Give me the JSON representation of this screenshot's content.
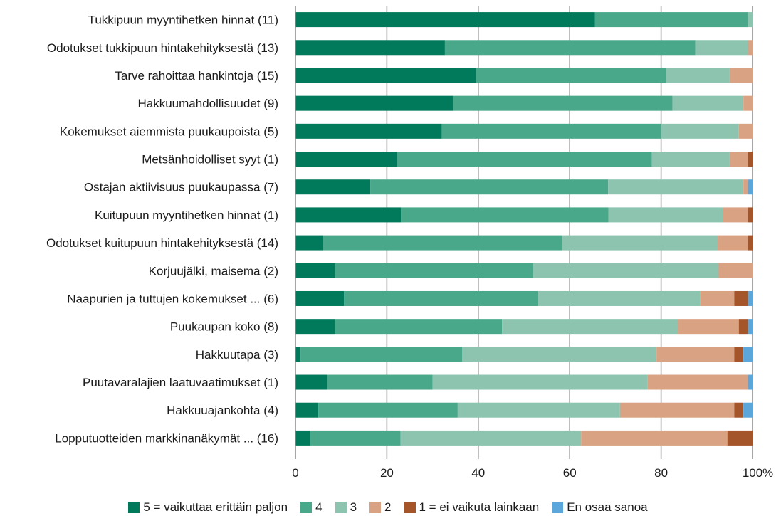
{
  "chart_data": {
    "type": "bar",
    "orientation": "horizontal",
    "stacked": true,
    "categories": [
      "Tukkipuun myyntihetken hinnat (11)",
      "Odotukset tukkipuun hintakehityksestä (13)",
      "Tarve rahoittaa hankintoja (15)",
      "Hakkuumahdollisuudet (9)",
      "Kokemukset aiemmista puukaupoista (5)",
      "Metsänhoidolliset syyt (1)",
      "Ostajan aktiivisuus puukaupassa (7)",
      "Kuitupuun myyntihetken hinnat (1)",
      "Odotukset kuitupuun hintakehityksestä (14)",
      "Korjuujälki, maisema (2)",
      "Naapurien ja tuttujen kokemukset ... (6)",
      "Puukaupan koko (8)",
      "Hakkuutapa (3)",
      "Puutavaralajien laatuvaatimukset (1)",
      "Hakkuuajankohta (4)",
      "Lopputuotteiden markkinanäkymät  ... (16)"
    ],
    "series": [
      {
        "name": "5 = vaikuttaa erittäin paljon",
        "color": "#007a5a",
        "values": [
          65.5,
          32.7,
          39.5,
          34.5,
          32.0,
          22.2,
          16.4,
          23.1,
          6.0,
          8.7,
          10.6,
          8.7,
          1.1,
          7.0,
          5.0,
          3.2
        ]
      },
      {
        "name": "4",
        "color": "#4aa88a",
        "values": [
          33.5,
          54.8,
          41.5,
          48.0,
          48.0,
          55.8,
          52.0,
          45.4,
          52.4,
          43.3,
          42.4,
          36.5,
          35.4,
          23.0,
          30.5,
          19.8
        ]
      },
      {
        "name": "3",
        "color": "#8cc4b0",
        "values": [
          1.0,
          11.5,
          14.0,
          15.5,
          17.0,
          17.0,
          29.6,
          25.0,
          34.0,
          40.5,
          35.5,
          38.5,
          42.5,
          47.0,
          35.5,
          39.5
        ]
      },
      {
        "name": "2",
        "color": "#d9a283",
        "values": [
          0,
          1.0,
          5.0,
          2.0,
          3.0,
          4.0,
          1.0,
          5.5,
          6.6,
          7.5,
          7.5,
          13.3,
          17.0,
          22.0,
          25.0,
          32.0
        ]
      },
      {
        "name": "1 = ei vaikuta lainkaan",
        "color": "#a5552a",
        "values": [
          0,
          0,
          0,
          0,
          0,
          1.0,
          0,
          1.0,
          1.0,
          0,
          3.0,
          2.0,
          2.0,
          0,
          2.0,
          5.5
        ]
      },
      {
        "name": "En osaa sanoa",
        "color": "#5ba7dc",
        "values": [
          0,
          0,
          0,
          0,
          0,
          0,
          1.0,
          0,
          0,
          0,
          1.0,
          1.0,
          2.0,
          1.0,
          2.0,
          0
        ]
      }
    ],
    "xlim": [
      0,
      100
    ],
    "xticks": [
      "0",
      "20",
      "40",
      "60",
      "80",
      "100"
    ],
    "x_unit": "%",
    "grid": true,
    "legend_position": "bottom"
  }
}
